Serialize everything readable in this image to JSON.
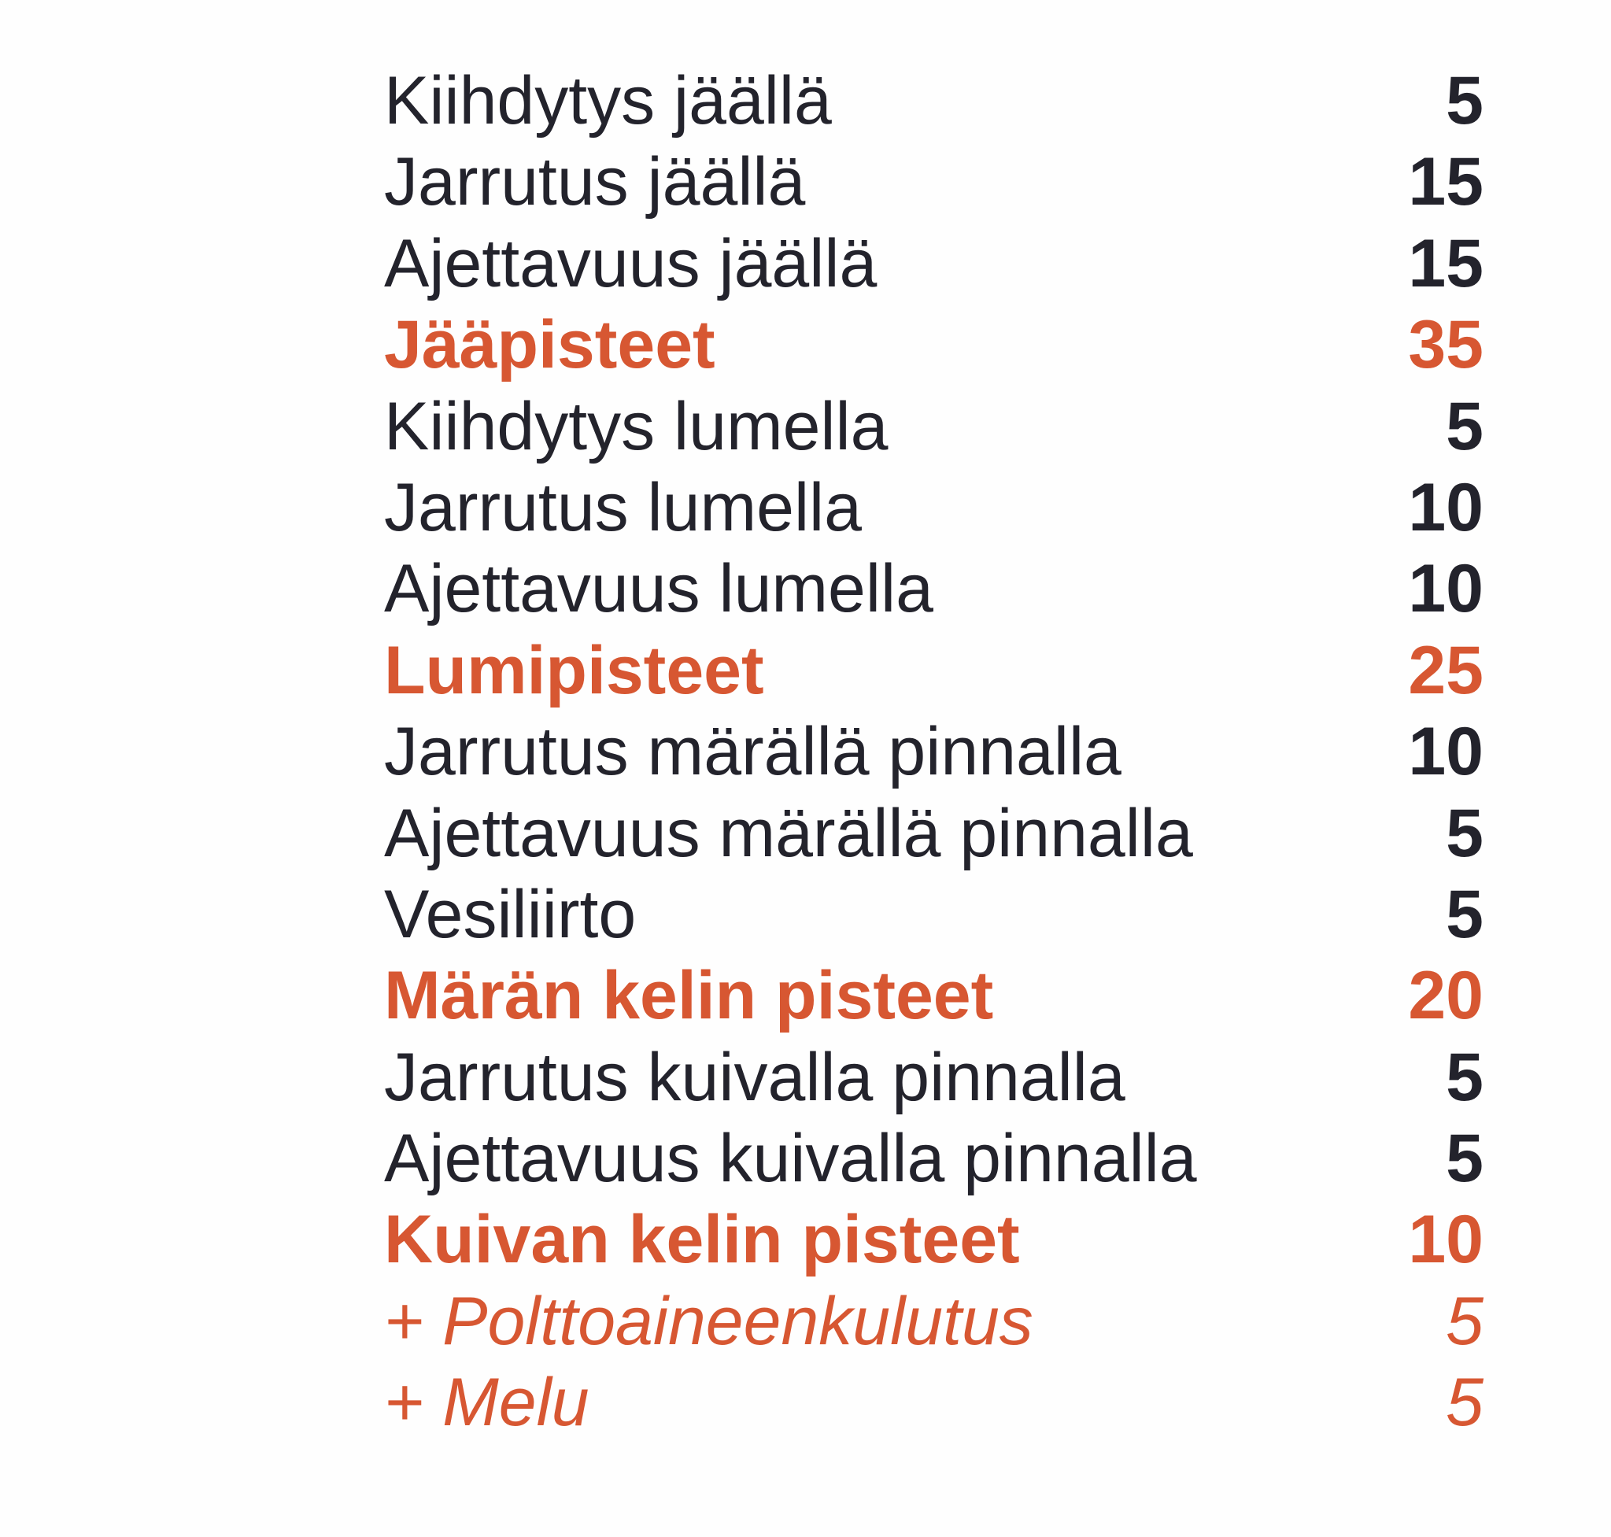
{
  "colors": {
    "text": "#23232c",
    "accent": "#d75732",
    "background": "#fefefe"
  },
  "rows": [
    {
      "label": "Kiihdytys jäällä",
      "value": "5",
      "kind": "item"
    },
    {
      "label": "Jarrutus jäällä",
      "value": "15",
      "kind": "item"
    },
    {
      "label": "Ajettavuus jäällä",
      "value": "15",
      "kind": "item"
    },
    {
      "label": "Jääpisteet",
      "value": "35",
      "kind": "subtotal"
    },
    {
      "label": "Kiihdytys lumella",
      "value": "5",
      "kind": "item"
    },
    {
      "label": "Jarrutus lumella",
      "value": "10",
      "kind": "item"
    },
    {
      "label": "Ajettavuus lumella",
      "value": "10",
      "kind": "item"
    },
    {
      "label": "Lumipisteet",
      "value": "25",
      "kind": "subtotal"
    },
    {
      "label": "Jarrutus märällä pinnalla",
      "value": "10",
      "kind": "item"
    },
    {
      "label": "Ajettavuus märällä pinnalla",
      "value": "5",
      "kind": "item"
    },
    {
      "label": "Vesiliirto",
      "value": "5",
      "kind": "item"
    },
    {
      "label": "Märän kelin pisteet",
      "value": "20",
      "kind": "subtotal"
    },
    {
      "label": "Jarrutus kuivalla pinnalla",
      "value": "5",
      "kind": "item"
    },
    {
      "label": "Ajettavuus kuivalla pinnalla",
      "value": "5",
      "kind": "item"
    },
    {
      "label": "Kuivan kelin pisteet",
      "value": "10",
      "kind": "subtotal"
    },
    {
      "label": "+ Polttoaineenkulutus",
      "value": "5",
      "kind": "extra"
    },
    {
      "label": "+ Melu",
      "value": "5",
      "kind": "extra"
    }
  ]
}
